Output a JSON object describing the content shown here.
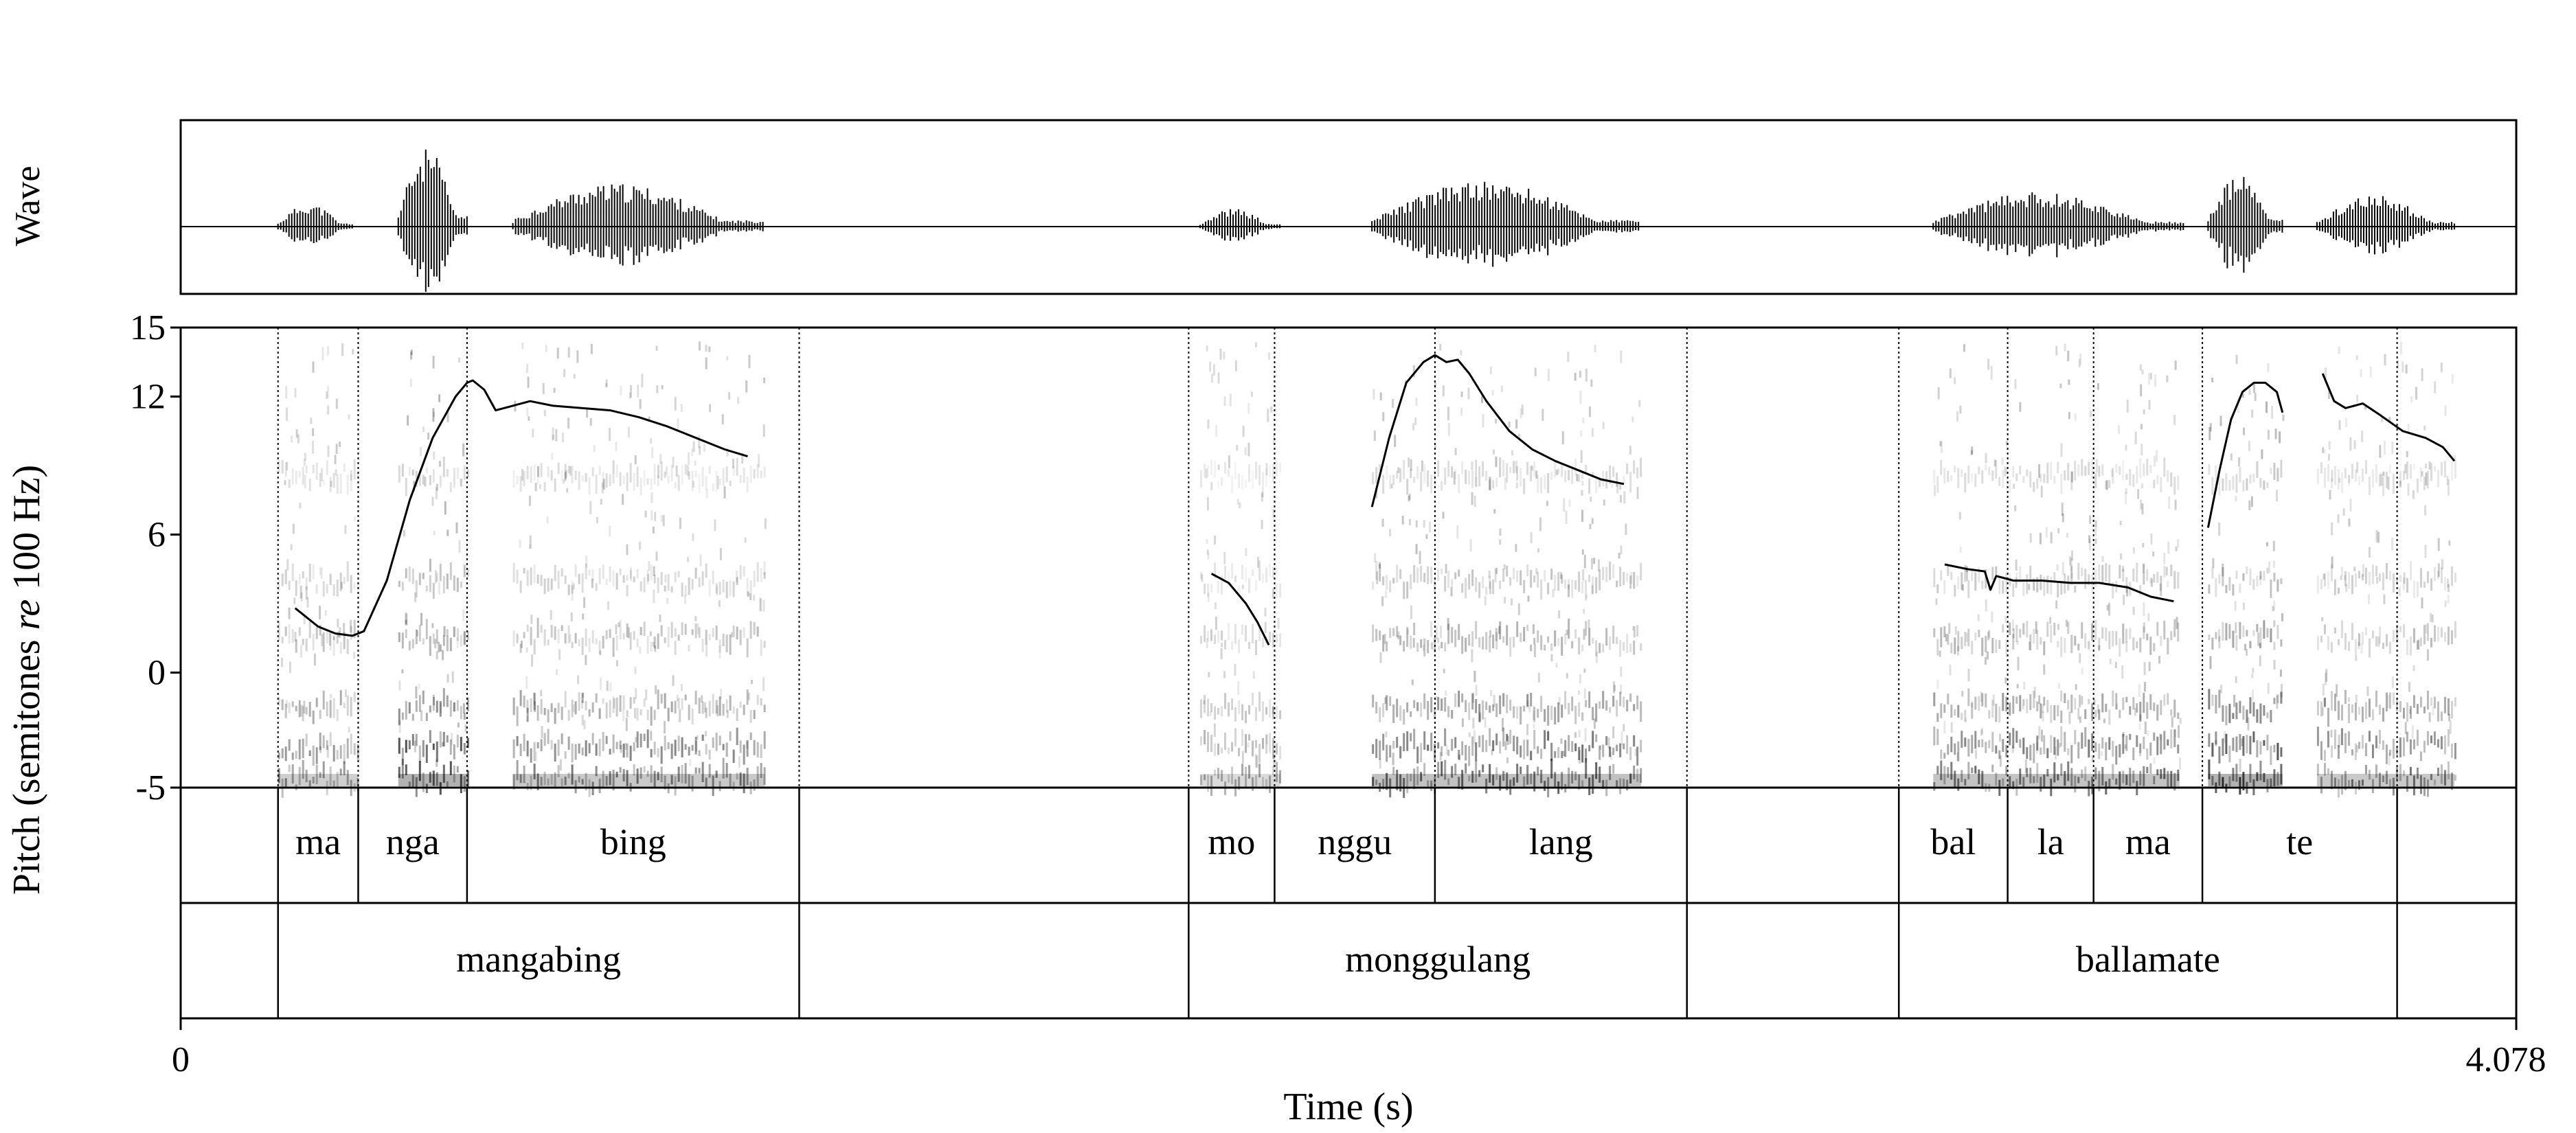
{
  "chart_data": {
    "type": "line",
    "title": "",
    "xlabel": "Time (s)",
    "x_tick_labels": [
      "0",
      "4.078"
    ],
    "xlim": [
      0,
      4.078
    ],
    "wave_label": "Wave",
    "ylabel_parts": [
      "Pitch (semitones ",
      "re",
      " 100 Hz)"
    ],
    "ylim": [
      -5,
      15
    ],
    "y_tick_labels": [
      "15",
      "12",
      "6",
      "0",
      "-5"
    ],
    "y_ticks": [
      15,
      12,
      6,
      0,
      -5
    ],
    "grid": false,
    "legend": "none",
    "waveform": [
      {
        "start": 0.17,
        "end": 0.3,
        "amp": 0.28
      },
      {
        "start": 0.38,
        "end": 0.5,
        "amp": 0.95
      },
      {
        "start": 0.58,
        "end": 1.02,
        "amp": 0.52
      },
      {
        "start": 1.78,
        "end": 1.92,
        "amp": 0.22
      },
      {
        "start": 2.08,
        "end": 2.55,
        "amp": 0.55
      },
      {
        "start": 3.06,
        "end": 3.5,
        "amp": 0.42
      },
      {
        "start": 3.54,
        "end": 3.67,
        "amp": 0.62
      },
      {
        "start": 3.73,
        "end": 3.97,
        "amp": 0.38
      }
    ],
    "spectrogram_regions": [
      {
        "start": 0.17,
        "end": 0.31,
        "intensity": 0.55
      },
      {
        "start": 0.38,
        "end": 0.5,
        "intensity": 0.85
      },
      {
        "start": 0.58,
        "end": 1.02,
        "intensity": 0.6
      },
      {
        "start": 1.78,
        "end": 1.92,
        "intensity": 0.4
      },
      {
        "start": 2.08,
        "end": 2.55,
        "intensity": 0.7
      },
      {
        "start": 3.06,
        "end": 3.49,
        "intensity": 0.65
      },
      {
        "start": 3.54,
        "end": 3.67,
        "intensity": 0.85
      },
      {
        "start": 3.73,
        "end": 3.97,
        "intensity": 0.6
      }
    ],
    "pitch_series": [
      [
        [
          0.2,
          2.8
        ],
        [
          0.24,
          2.0
        ],
        [
          0.27,
          1.7
        ],
        [
          0.3,
          1.6
        ],
        [
          0.32,
          1.8
        ],
        [
          0.36,
          4.0
        ],
        [
          0.4,
          7.5
        ],
        [
          0.44,
          10.2
        ],
        [
          0.48,
          12.0
        ],
        [
          0.5,
          12.6
        ],
        [
          0.51,
          12.7
        ],
        [
          0.53,
          12.3
        ],
        [
          0.55,
          11.4
        ],
        [
          0.58,
          11.6
        ],
        [
          0.61,
          11.8
        ],
        [
          0.65,
          11.6
        ],
        [
          0.7,
          11.5
        ],
        [
          0.75,
          11.4
        ],
        [
          0.8,
          11.1
        ],
        [
          0.85,
          10.7
        ],
        [
          0.9,
          10.2
        ],
        [
          0.95,
          9.7
        ],
        [
          0.99,
          9.4
        ]
      ],
      [
        [
          1.8,
          4.3
        ],
        [
          1.83,
          3.9
        ],
        [
          1.86,
          3.0
        ],
        [
          1.88,
          2.2
        ],
        [
          1.9,
          1.2
        ]
      ],
      [
        [
          2.08,
          7.2
        ],
        [
          2.11,
          10.2
        ],
        [
          2.14,
          12.6
        ],
        [
          2.17,
          13.5
        ],
        [
          2.19,
          13.8
        ],
        [
          2.21,
          13.5
        ],
        [
          2.23,
          13.6
        ],
        [
          2.25,
          13.0
        ],
        [
          2.28,
          11.8
        ],
        [
          2.32,
          10.5
        ],
        [
          2.36,
          9.7
        ],
        [
          2.4,
          9.2
        ],
        [
          2.44,
          8.8
        ],
        [
          2.48,
          8.4
        ],
        [
          2.52,
          8.2
        ]
      ],
      [
        [
          3.08,
          4.7
        ],
        [
          3.12,
          4.5
        ],
        [
          3.15,
          4.4
        ],
        [
          3.16,
          3.6
        ],
        [
          3.17,
          4.2
        ],
        [
          3.2,
          4.0
        ],
        [
          3.25,
          4.0
        ],
        [
          3.3,
          3.9
        ],
        [
          3.35,
          3.9
        ],
        [
          3.4,
          3.7
        ],
        [
          3.44,
          3.3
        ],
        [
          3.48,
          3.1
        ]
      ],
      [
        [
          3.54,
          6.3
        ],
        [
          3.56,
          8.8
        ],
        [
          3.58,
          11.0
        ],
        [
          3.6,
          12.2
        ],
        [
          3.62,
          12.6
        ],
        [
          3.64,
          12.6
        ],
        [
          3.66,
          12.2
        ],
        [
          3.67,
          11.3
        ]
      ],
      [
        [
          3.74,
          13.0
        ],
        [
          3.76,
          11.8
        ],
        [
          3.78,
          11.5
        ],
        [
          3.81,
          11.7
        ],
        [
          3.84,
          11.2
        ],
        [
          3.88,
          10.5
        ],
        [
          3.92,
          10.2
        ],
        [
          3.95,
          9.8
        ],
        [
          3.97,
          9.2
        ]
      ]
    ],
    "syllable_tier": {
      "boundaries": [
        0.17,
        0.31,
        0.5,
        1.08,
        1.76,
        1.91,
        2.19,
        2.63,
        3.0,
        3.19,
        3.34,
        3.53,
        3.87
      ],
      "intervals": [
        {
          "start": 0.17,
          "end": 0.31,
          "text": "ma"
        },
        {
          "start": 0.31,
          "end": 0.5,
          "text": "nga"
        },
        {
          "start": 0.5,
          "end": 1.08,
          "text": "bing"
        },
        {
          "start": 1.76,
          "end": 1.91,
          "text": "mo"
        },
        {
          "start": 1.91,
          "end": 2.19,
          "text": "nggu"
        },
        {
          "start": 2.19,
          "end": 2.63,
          "text": "lang"
        },
        {
          "start": 3.0,
          "end": 3.19,
          "text": "bal"
        },
        {
          "start": 3.19,
          "end": 3.34,
          "text": "la"
        },
        {
          "start": 3.34,
          "end": 3.53,
          "text": "ma"
        },
        {
          "start": 3.53,
          "end": 3.87,
          "text": "te"
        }
      ]
    },
    "word_tier": {
      "boundaries": [
        0.17,
        1.08,
        1.76,
        2.63,
        3.0,
        3.87
      ],
      "intervals": [
        {
          "start": 0.17,
          "end": 1.08,
          "text": "mangabing"
        },
        {
          "start": 1.76,
          "end": 2.63,
          "text": "monggulang"
        },
        {
          "start": 3.0,
          "end": 3.87,
          "text": "ballamate"
        }
      ]
    }
  }
}
